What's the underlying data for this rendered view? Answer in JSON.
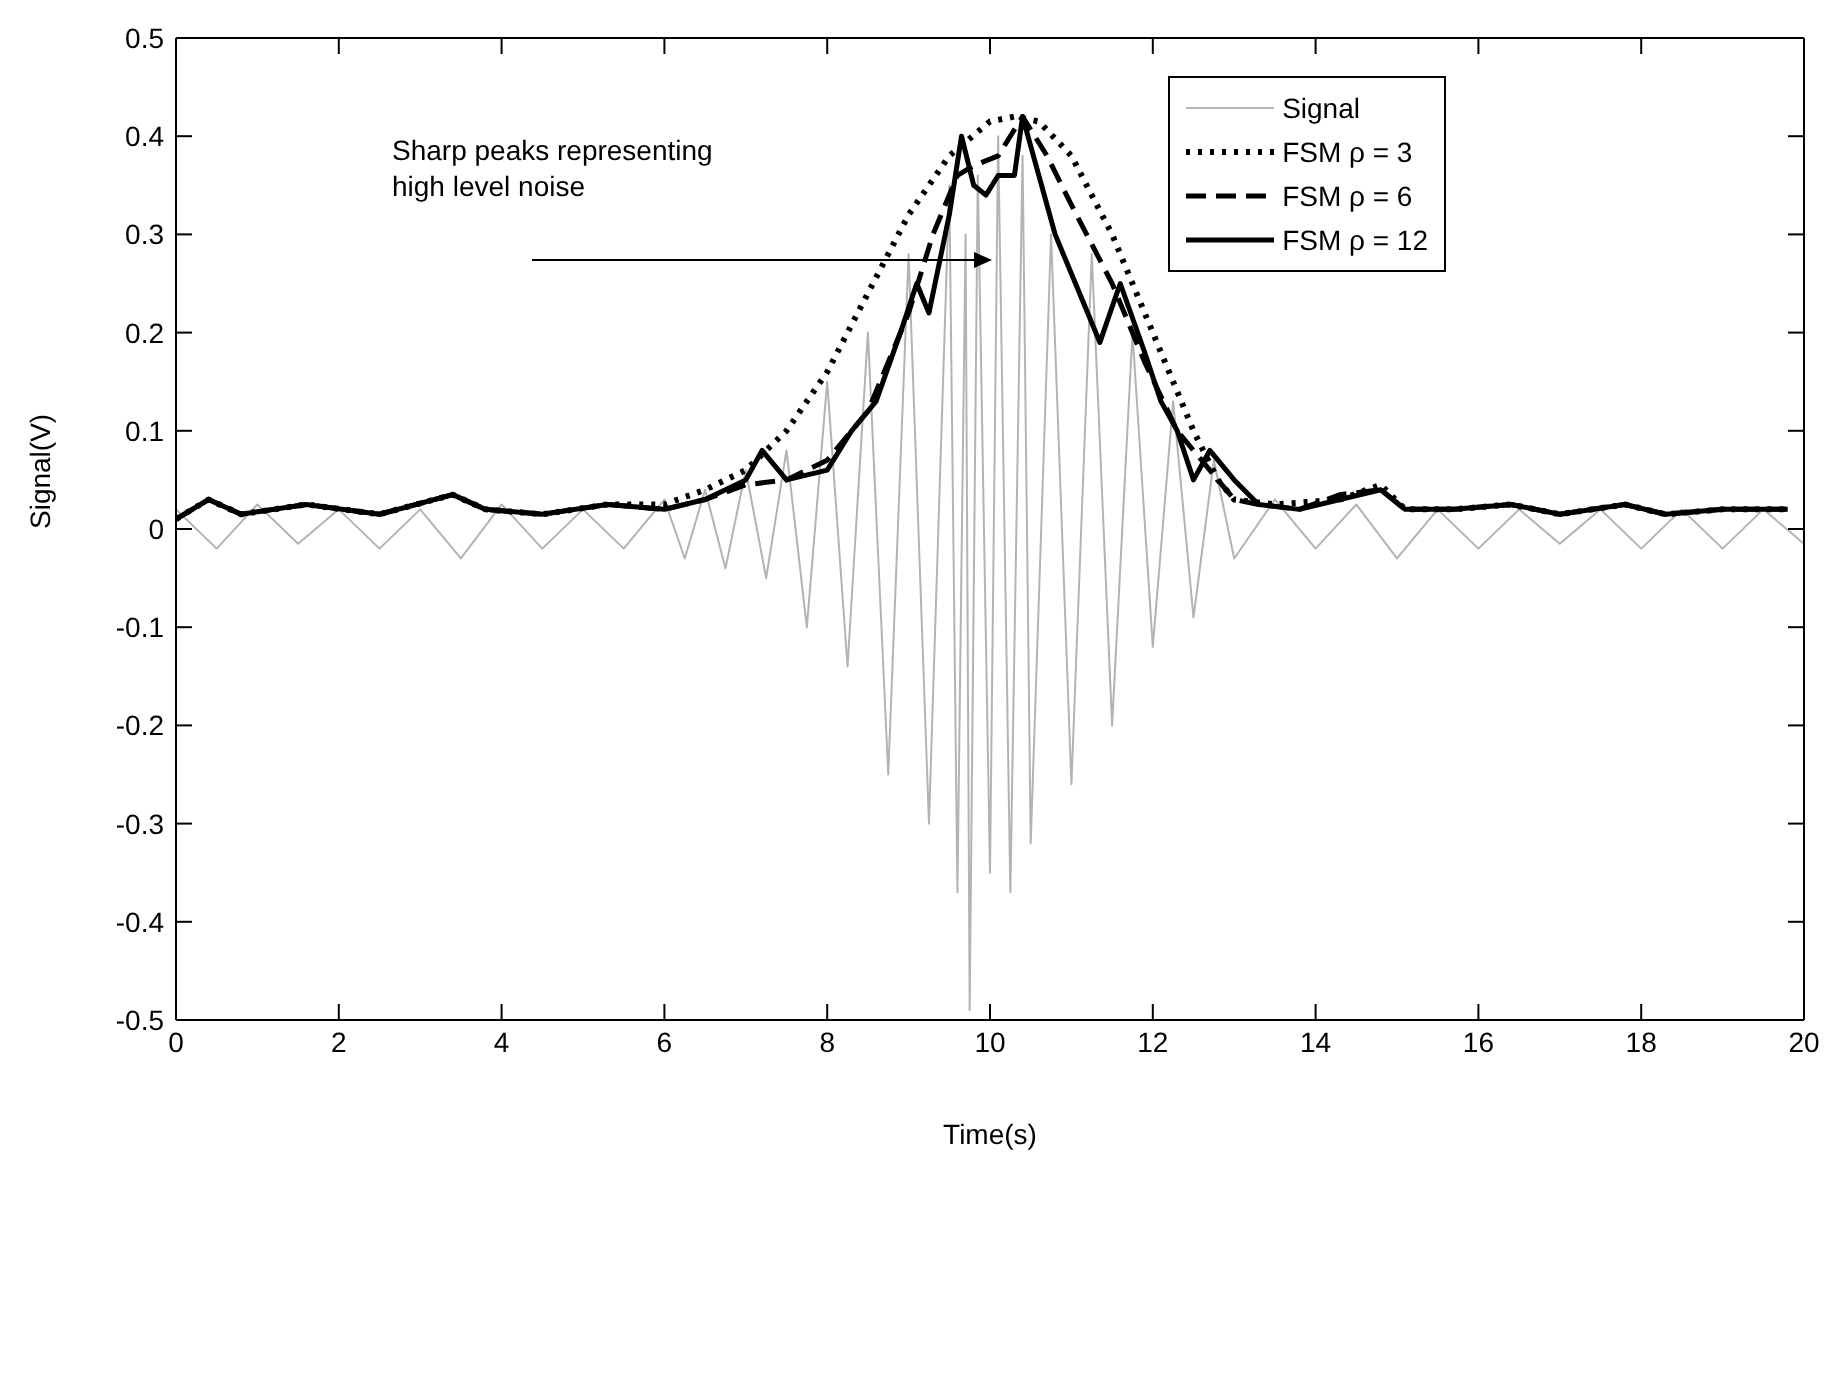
{
  "chart_data": {
    "type": "line",
    "xlabel": "Time(s)",
    "ylabel": "Signal(V)",
    "xlim": [
      0,
      20
    ],
    "ylim": [
      -0.5,
      0.5
    ],
    "xticks": [
      0,
      2,
      4,
      6,
      8,
      10,
      12,
      14,
      16,
      18,
      20
    ],
    "yticks": [
      -0.5,
      -0.4,
      -0.3,
      -0.2,
      -0.1,
      0,
      0.1,
      0.2,
      0.3,
      0.4,
      0.5
    ],
    "legend": "top right",
    "marker": "none",
    "annotations": [
      "Sharp peaks representing\nhigh level noise"
    ],
    "series": [
      {
        "name": "Signal",
        "color": "#b3b3b3",
        "line_style": "solid",
        "x": [
          0,
          0.5,
          1,
          1.5,
          2,
          2.5,
          3,
          3.5,
          4,
          4.5,
          5,
          5.5,
          6,
          6.25,
          6.5,
          6.75,
          7,
          7.25,
          7.5,
          7.75,
          8,
          8.25,
          8.5,
          8.75,
          9,
          9.25,
          9.5,
          9.6,
          9.7,
          9.75,
          9.85,
          10,
          10.1,
          10.25,
          10.4,
          10.5,
          10.75,
          11,
          11.25,
          11.5,
          11.75,
          12,
          12.25,
          12.5,
          12.75,
          13,
          13.5,
          14,
          14.5,
          15,
          15.5,
          16,
          16.5,
          17,
          17.5,
          18,
          18.5,
          19,
          19.5,
          20
        ],
        "values": [
          0.02,
          -0.02,
          0.025,
          -0.015,
          0.02,
          -0.02,
          0.02,
          -0.03,
          0.025,
          -0.02,
          0.02,
          -0.02,
          0.03,
          -0.03,
          0.04,
          -0.04,
          0.06,
          -0.05,
          0.08,
          -0.1,
          0.15,
          -0.14,
          0.2,
          -0.25,
          0.28,
          -0.3,
          0.35,
          -0.37,
          0.3,
          -0.49,
          0.36,
          -0.35,
          0.4,
          -0.37,
          0.38,
          -0.32,
          0.3,
          -0.26,
          0.28,
          -0.2,
          0.2,
          -0.12,
          0.13,
          -0.09,
          0.07,
          -0.03,
          0.03,
          -0.02,
          0.025,
          -0.03,
          0.02,
          -0.02,
          0.02,
          -0.015,
          0.02,
          -0.02,
          0.02,
          -0.02,
          0.02,
          -0.015
        ]
      },
      {
        "name": "FSM ρ = 3",
        "color": "#000000",
        "line_style": "dotted",
        "x": [
          0,
          0.4,
          0.8,
          1.6,
          2.5,
          3.4,
          3.8,
          4.5,
          5.3,
          6,
          6.5,
          7,
          7.5,
          8,
          8.5,
          9,
          9.5,
          10,
          10.3,
          10.6,
          11,
          11.5,
          12,
          12.5,
          12.8,
          13,
          13.5,
          14.3,
          14.8,
          15.1,
          15.7,
          16.4,
          17,
          17.8,
          18.3,
          19,
          19.8
        ],
        "values": [
          0.01,
          0.03,
          0.015,
          0.025,
          0.015,
          0.035,
          0.02,
          0.015,
          0.025,
          0.025,
          0.04,
          0.06,
          0.1,
          0.16,
          0.24,
          0.32,
          0.38,
          0.415,
          0.42,
          0.415,
          0.38,
          0.3,
          0.2,
          0.1,
          0.05,
          0.03,
          0.025,
          0.03,
          0.045,
          0.02,
          0.02,
          0.025,
          0.015,
          0.025,
          0.015,
          0.02,
          0.02
        ]
      },
      {
        "name": "FSM ρ = 6",
        "color": "#000000",
        "line_style": "dashed",
        "x": [
          0,
          0.4,
          0.8,
          1.6,
          2.5,
          3.4,
          3.8,
          4.5,
          5.3,
          6,
          6.5,
          7,
          7.5,
          8,
          8.5,
          9,
          9.3,
          9.6,
          9.8,
          10.1,
          10.4,
          10.7,
          11,
          11.5,
          11.9,
          12.3,
          12.7,
          13,
          13.3,
          13.8,
          14.3,
          14.8,
          15.1,
          15.7,
          16.4,
          17,
          17.8,
          18.3,
          19,
          19.8
        ],
        "values": [
          0.01,
          0.03,
          0.015,
          0.025,
          0.015,
          0.035,
          0.02,
          0.015,
          0.025,
          0.02,
          0.03,
          0.045,
          0.05,
          0.07,
          0.12,
          0.22,
          0.3,
          0.36,
          0.37,
          0.38,
          0.42,
          0.38,
          0.33,
          0.25,
          0.17,
          0.1,
          0.06,
          0.03,
          0.025,
          0.02,
          0.035,
          0.04,
          0.02,
          0.02,
          0.025,
          0.015,
          0.025,
          0.015,
          0.02,
          0.02
        ]
      },
      {
        "name": "FSM ρ = 12",
        "color": "#000000",
        "line_style": "solid",
        "x": [
          0,
          0.4,
          0.8,
          1.6,
          2.5,
          3.4,
          3.8,
          4.5,
          5.3,
          6,
          6.5,
          7,
          7.2,
          7.5,
          8,
          8.3,
          8.6,
          8.9,
          9.1,
          9.25,
          9.5,
          9.65,
          9.8,
          9.95,
          10.1,
          10.3,
          10.4,
          10.6,
          10.8,
          11.1,
          11.35,
          11.6,
          11.9,
          12.1,
          12.3,
          12.5,
          12.7,
          13,
          13.3,
          13.8,
          14.3,
          14.8,
          15.1,
          15.7,
          16.4,
          17,
          17.8,
          18.3,
          19,
          19.8
        ],
        "values": [
          0.01,
          0.03,
          0.015,
          0.025,
          0.015,
          0.035,
          0.02,
          0.015,
          0.025,
          0.02,
          0.03,
          0.05,
          0.08,
          0.05,
          0.06,
          0.1,
          0.13,
          0.2,
          0.25,
          0.22,
          0.32,
          0.4,
          0.35,
          0.34,
          0.36,
          0.36,
          0.42,
          0.36,
          0.3,
          0.24,
          0.19,
          0.25,
          0.18,
          0.13,
          0.1,
          0.05,
          0.08,
          0.05,
          0.025,
          0.02,
          0.03,
          0.04,
          0.02,
          0.02,
          0.025,
          0.015,
          0.025,
          0.015,
          0.02,
          0.02
        ]
      }
    ]
  }
}
